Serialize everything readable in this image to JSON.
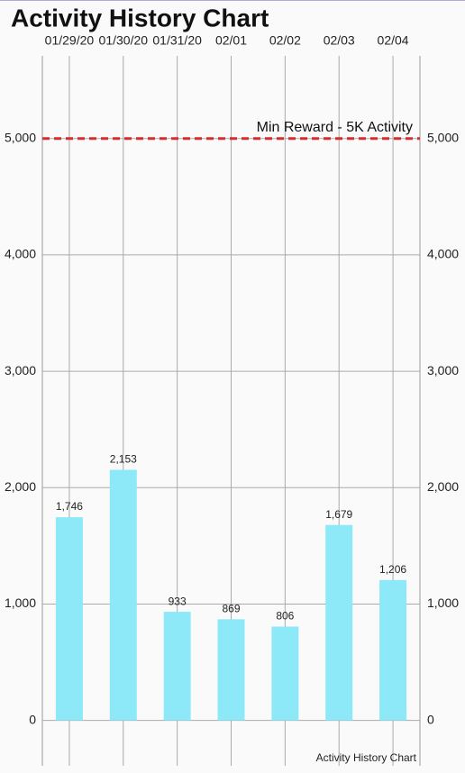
{
  "chart_data": {
    "type": "bar",
    "title": "Activity History Chart",
    "categories": [
      "01/29/20",
      "01/30/20",
      "01/31/20",
      "02/01",
      "02/02",
      "02/03",
      "02/04"
    ],
    "values": [
      1746,
      2153,
      933,
      869,
      806,
      1679,
      1206
    ],
    "value_labels": [
      "1,746",
      "2,153",
      "933",
      "869",
      "806",
      "1,679",
      "1,206"
    ],
    "color": "#8de8f8",
    "ylim": [
      -390,
      5710
    ],
    "yticks": [
      0,
      {
        "value": 1000,
        "label": "1,000"
      },
      {
        "value": 2000,
        "label": "2,000"
      },
      {
        "value": 3000,
        "label": "3,000"
      },
      {
        "value": 4000,
        "label": "4,000"
      },
      {
        "value": 5000,
        "label": "5,000"
      }
    ],
    "grid": true,
    "limit_line": {
      "value": 5000,
      "label": "Min Reward - 5K Activity",
      "color": "#d32f2f"
    },
    "description": "Activity History Chart"
  }
}
